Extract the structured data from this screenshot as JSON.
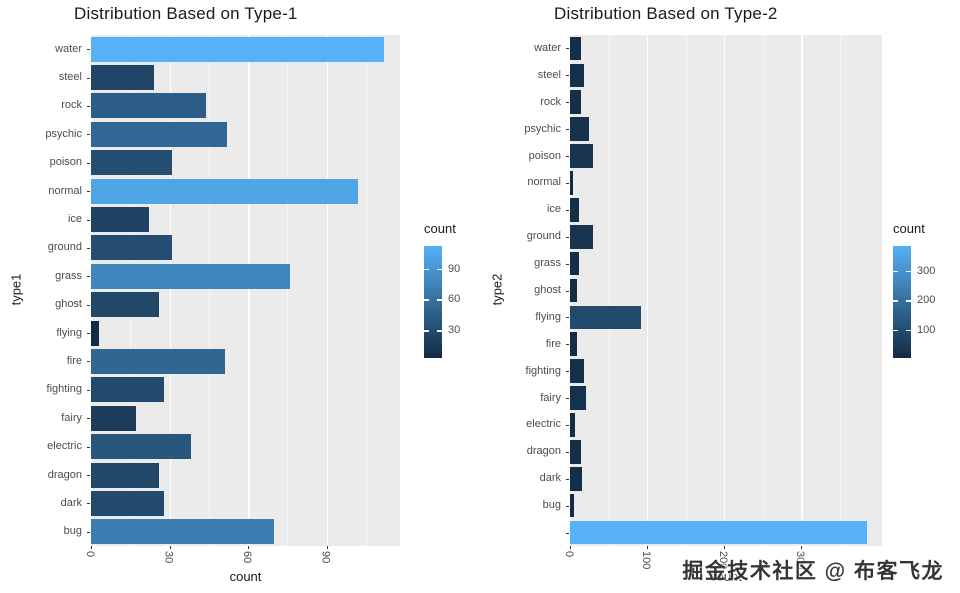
{
  "watermark": "掘金技术社区 @ 布客飞龙",
  "colors": {
    "low": "#132B43",
    "high": "#56B1F7",
    "panel_bg": "#EBEBEB",
    "grid": "#FFFFFF",
    "axis_text": "#4D4D4D",
    "title_text": "#1A1A1A"
  },
  "chart_data": [
    {
      "type": "bar",
      "orientation": "horizontal",
      "title": "Distribution Based on Type-1",
      "xlabel": "count",
      "ylabel": "type1",
      "legend_title": "count",
      "legend_ticks": [
        30,
        60,
        90
      ],
      "x_ticks": [
        0,
        30,
        60,
        90
      ],
      "xlim": [
        0,
        118
      ],
      "grid": true,
      "legend_position": "right",
      "categories": [
        "water",
        "steel",
        "rock",
        "psychic",
        "poison",
        "normal",
        "ice",
        "ground",
        "grass",
        "ghost",
        "flying",
        "fire",
        "fighting",
        "fairy",
        "electric",
        "dragon",
        "dark",
        "bug"
      ],
      "values": [
        112,
        24,
        44,
        52,
        31,
        102,
        22,
        31,
        76,
        26,
        3,
        51,
        28,
        17,
        38,
        26,
        28,
        70
      ]
    },
    {
      "type": "bar",
      "orientation": "horizontal",
      "title": "Distribution Based on Type-2",
      "xlabel": "count",
      "ylabel": "type2",
      "legend_title": "count",
      "legend_ticks": [
        100,
        200,
        300
      ],
      "x_ticks": [
        0,
        100,
        200,
        300
      ],
      "xlim": [
        0,
        405
      ],
      "grid": true,
      "legend_position": "right",
      "categories": [
        "water",
        "steel",
        "rock",
        "psychic",
        "poison",
        "normal",
        "ice",
        "ground",
        "grass",
        "ghost",
        "flying",
        "fire",
        "fighting",
        "fairy",
        "electric",
        "dragon",
        "dark",
        "bug",
        ""
      ],
      "values": [
        14,
        18,
        14,
        25,
        30,
        4,
        12,
        30,
        12,
        9,
        92,
        9,
        18,
        21,
        7,
        14,
        16,
        5,
        385
      ]
    }
  ]
}
